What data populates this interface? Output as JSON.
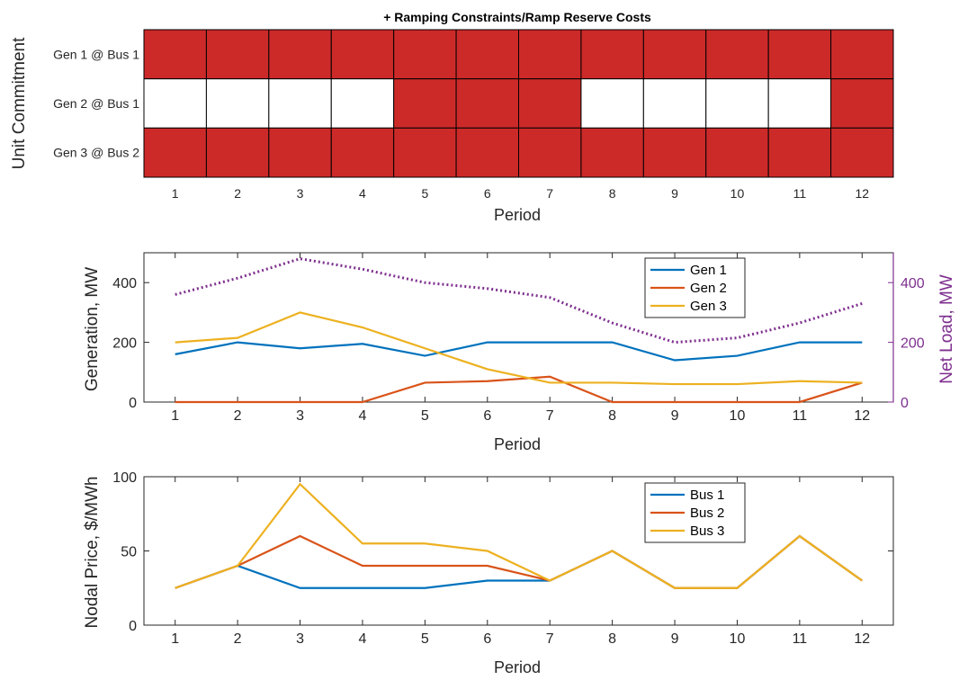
{
  "chart_data": [
    {
      "type": "heatmap",
      "title": "+ Ramping Constraints/Ramp Reserve Costs",
      "xlabel": "Period",
      "ylabel": "Unit Commitment",
      "x": [
        "1",
        "2",
        "3",
        "4",
        "5",
        "6",
        "7",
        "8",
        "9",
        "10",
        "11",
        "12"
      ],
      "rows": [
        "Gen 1 @ Bus 1",
        "Gen 2 @ Bus 1",
        "Gen 3 @ Bus 2"
      ],
      "values": [
        [
          1,
          1,
          1,
          1,
          1,
          1,
          1,
          1,
          1,
          1,
          1,
          1
        ],
        [
          0,
          0,
          0,
          0,
          1,
          1,
          1,
          0,
          0,
          0,
          0,
          1
        ],
        [
          1,
          1,
          1,
          1,
          1,
          1,
          1,
          1,
          1,
          1,
          1,
          1
        ]
      ],
      "on_color": "#cc2a29",
      "off_color": "#ffffff"
    },
    {
      "type": "line",
      "xlabel": "Period",
      "ylabel": "Generation, MW",
      "ylabel_right": "Net Load, MW",
      "x": [
        1,
        2,
        3,
        4,
        5,
        6,
        7,
        8,
        9,
        10,
        11,
        12
      ],
      "xlim": [
        0.5,
        12.5
      ],
      "ylim": [
        0,
        500
      ],
      "yticks": [
        0,
        200,
        400
      ],
      "ylim_right": [
        0,
        500
      ],
      "yticks_right": [
        0,
        200,
        400
      ],
      "right_axis_color": "#7e2f8e",
      "legend_position": "top-right",
      "series": [
        {
          "name": "Gen 1",
          "color": "#0072bd",
          "values": [
            160,
            200,
            180,
            195,
            155,
            200,
            200,
            200,
            140,
            155,
            200,
            200
          ]
        },
        {
          "name": "Gen 2",
          "color": "#d95319",
          "values": [
            0,
            0,
            0,
            0,
            65,
            70,
            85,
            0,
            0,
            0,
            0,
            65
          ]
        },
        {
          "name": "Gen 3",
          "color": "#edb120",
          "values": [
            200,
            215,
            300,
            250,
            180,
            110,
            65,
            65,
            60,
            60,
            70,
            65
          ]
        }
      ],
      "right_series": [
        {
          "color": "#7e2f8e",
          "style": "dotted",
          "values": [
            360,
            415,
            480,
            445,
            400,
            380,
            350,
            265,
            200,
            215,
            265,
            330
          ]
        }
      ]
    },
    {
      "type": "line",
      "xlabel": "Period",
      "ylabel": "Nodal Price, $/MWh",
      "x": [
        1,
        2,
        3,
        4,
        5,
        6,
        7,
        8,
        9,
        10,
        11,
        12
      ],
      "xlim": [
        0.5,
        12.5
      ],
      "ylim": [
        0,
        100
      ],
      "yticks": [
        0,
        50,
        100
      ],
      "legend_position": "top-right",
      "series": [
        {
          "name": "Bus 1",
          "color": "#0072bd",
          "values": [
            25,
            40,
            25,
            25,
            25,
            30,
            30,
            50,
            25,
            25,
            60,
            30
          ]
        },
        {
          "name": "Bus 2",
          "color": "#d95319",
          "values": [
            25,
            40,
            60,
            40,
            40,
            40,
            30,
            50,
            25,
            25,
            60,
            30
          ]
        },
        {
          "name": "Bus 3",
          "color": "#edb120",
          "values": [
            25,
            40,
            95,
            55,
            55,
            50,
            30,
            50,
            25,
            25,
            60,
            30
          ]
        }
      ]
    }
  ]
}
